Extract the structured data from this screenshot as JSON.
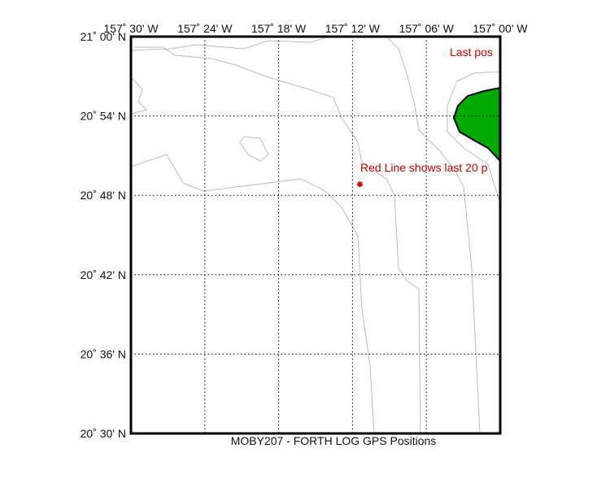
{
  "map": {
    "title": "MOBY207 - FORTH LOG GPS Positions",
    "xlim": [
      -157.5,
      -157.0
    ],
    "ylim": [
      20.5,
      21.0
    ],
    "xticks": [
      {
        "value": -157.5,
        "label": "157˚ 30' W"
      },
      {
        "value": -157.4,
        "label": "157˚ 24' W"
      },
      {
        "value": -157.3,
        "label": "157˚ 18' W"
      },
      {
        "value": -157.2,
        "label": "157˚ 12' W"
      },
      {
        "value": -157.1,
        "label": "157˚ 06' W"
      },
      {
        "value": -157.0,
        "label": "157˚ 00' W"
      }
    ],
    "yticks": [
      {
        "value": 21.0,
        "label": "21˚ 00' N"
      },
      {
        "value": 20.9,
        "label": "20˚ 54' N"
      },
      {
        "value": 20.8,
        "label": "20˚ 48' N"
      },
      {
        "value": 20.7,
        "label": "20˚ 42' N"
      },
      {
        "value": 20.6,
        "label": "20˚ 36' N"
      },
      {
        "value": 20.5,
        "label": "20˚ 30' N"
      }
    ],
    "grid": true,
    "annotations": [
      "Last pos",
      "Red Line shows last 20 p"
    ],
    "position": {
      "lon": -157.19,
      "lat": 20.814,
      "color": "#cc0000"
    },
    "land_color": "#00aa00"
  }
}
